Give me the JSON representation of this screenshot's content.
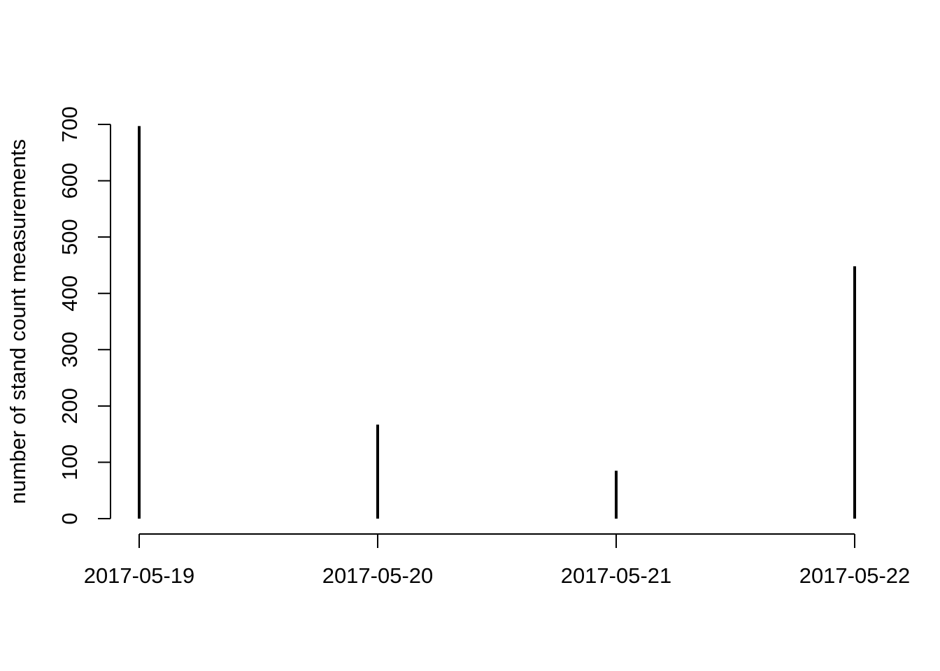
{
  "chart_data": {
    "type": "bar",
    "subtype": "histogram-lines",
    "title": "",
    "xlabel": "",
    "ylabel": "number of stand count measurements",
    "categories": [
      "2017-05-19",
      "2017-05-20",
      "2017-05-21",
      "2017-05-22"
    ],
    "values": [
      697,
      167,
      85,
      448
    ],
    "ylim": [
      0,
      700
    ],
    "yticks": [
      0,
      100,
      200,
      300,
      400,
      500,
      600,
      700
    ],
    "ytick_labels": [
      "0",
      "100",
      "200",
      "300",
      "400",
      "500",
      "600",
      "700"
    ],
    "xtick_labels": [
      "2017-05-19",
      "2017-05-20",
      "2017-05-21",
      "2017-05-22"
    ],
    "grid": false,
    "legend": "none",
    "colors": {
      "bars": "#000000",
      "axes": "#000000",
      "background": "#ffffff"
    }
  }
}
